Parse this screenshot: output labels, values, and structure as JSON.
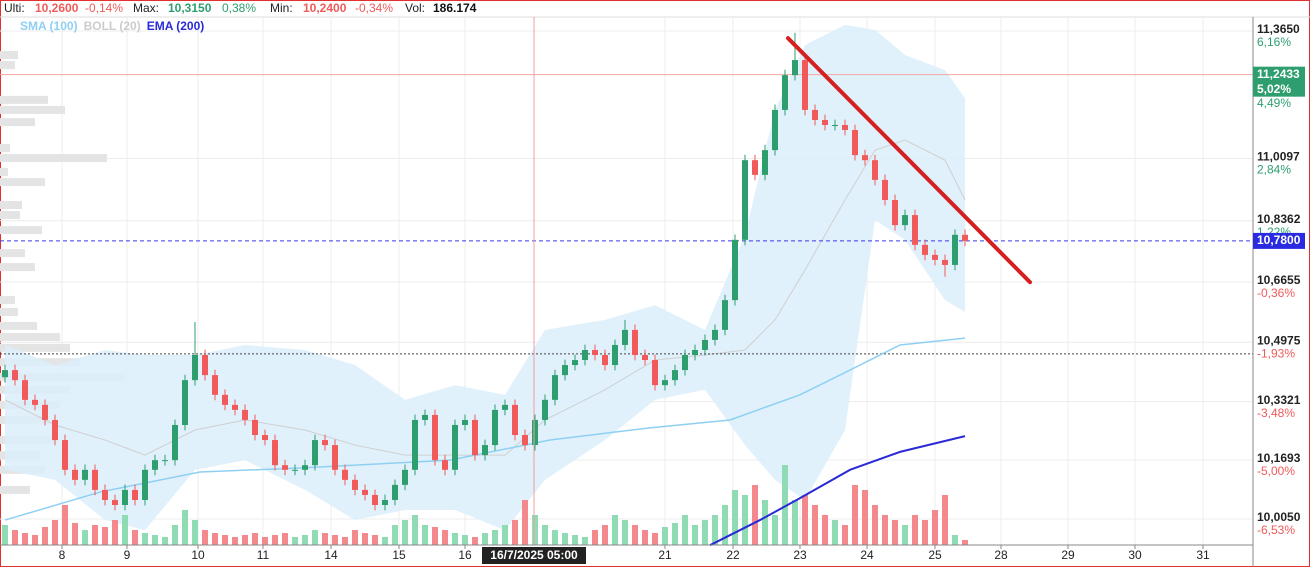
{
  "chart_data": {
    "type": "candlestick",
    "header": [
      {
        "label": "Ulti:",
        "value": "10,2600",
        "change": "-0,14%"
      },
      {
        "label": "Max:",
        "value": "10,3150",
        "change": "0,38%"
      },
      {
        "label": "Min:",
        "value": "10,2400",
        "change": "-0,34%"
      },
      {
        "label": "Vol:",
        "value": "186.174"
      }
    ],
    "up_color": "#2e9e6e",
    "down_color": "#f05a5a",
    "volume_up_color": "#8fdcb4",
    "volume_down_color": "#f3898c",
    "xlim": [
      -0.5,
      124.8
    ],
    "ylim": [
      9.9325,
      11.404
    ],
    "vlim": [
      0,
      100
    ],
    "grid": true,
    "xticks": [
      {
        "value": 5.7,
        "label": "8"
      },
      {
        "value": 12.2,
        "label": "9"
      },
      {
        "value": 19.3,
        "label": "10"
      },
      {
        "value": 25.8,
        "label": "11"
      },
      {
        "value": 32.6,
        "label": "14"
      },
      {
        "value": 39.4,
        "label": "15"
      },
      {
        "value": 46,
        "label": "16"
      },
      {
        "value": 66,
        "label": "21"
      },
      {
        "value": 72.8,
        "label": "22"
      },
      {
        "value": 79.5,
        "label": "23"
      },
      {
        "value": 86.2,
        "label": "24"
      },
      {
        "value": 93,
        "label": "25"
      },
      {
        "value": 99.6,
        "label": "28"
      },
      {
        "value": 106.3,
        "label": "29"
      },
      {
        "value": 113,
        "label": "30"
      },
      {
        "value": 119.8,
        "label": "31"
      }
    ],
    "crosshair": {
      "value": 52.9,
      "label": "16/7/2025 05:00"
    },
    "yticks": [
      {
        "value": 11.365,
        "label": "11,3650",
        "change": "6,16%"
      },
      {
        "value": 11.0097,
        "label": "11,0097",
        "change": "2,84%"
      },
      {
        "value": 10.8362,
        "label": "10,8362",
        "change": "1,22%"
      },
      {
        "value": 10.6655,
        "label": "10,6655",
        "change": "-0,36%"
      },
      {
        "value": 10.4975,
        "label": "10,4975",
        "change": "-1,93%"
      },
      {
        "value": 10.3321,
        "label": "10,3321",
        "change": "-3,48%"
      },
      {
        "value": 10.1693,
        "label": "10,1693",
        "change": "-5,00%"
      },
      {
        "value": 10.005,
        "label": "10,0050",
        "change": "-6,53%"
      }
    ],
    "extra_change": {
      "value": 11.162,
      "label": "4,49%"
    },
    "price_markers": [
      {
        "value": 11.2433,
        "label": "11,2433",
        "change": "5,02%",
        "color": "#2e9e6e",
        "line_color": "#f4a6a0",
        "dash": false
      },
      {
        "value": 10.78,
        "label": "10,7800",
        "color": "#2a2ae0",
        "line_color": "#3a3ae6",
        "dash": true
      }
    ],
    "reference_line": {
      "value": 10.465,
      "color": "#444"
    },
    "open": [
      10.4,
      10.42,
      10.392,
      10.337,
      10.323,
      10.281,
      10.225,
      10.142,
      10.114,
      10.142,
      10.086,
      10.058,
      10.044,
      10.086,
      10.058,
      10.142,
      10.169,
      10.169,
      10.267,
      10.392,
      10.462,
      10.406,
      10.351,
      10.323,
      10.309,
      10.281,
      10.239,
      10.225,
      10.155,
      10.142,
      10.142,
      10.155,
      10.225,
      10.211,
      10.142,
      10.114,
      10.086,
      10.072,
      10.044,
      10.058,
      10.1,
      10.142,
      10.281,
      10.295,
      10.169,
      10.142,
      10.267,
      10.281,
      10.183,
      10.211,
      10.309,
      10.323,
      10.239,
      10.211,
      10.281,
      10.337,
      10.406,
      10.434,
      10.448,
      10.476,
      10.462,
      10.434,
      10.49,
      10.532,
      10.462,
      10.448,
      10.378,
      10.392,
      10.42,
      10.462,
      10.476,
      10.504,
      10.532,
      10.615,
      10.783,
      11.005,
      10.964,
      11.033,
      11.145,
      11.242,
      11.284,
      11.145,
      11.117,
      11.103,
      11.103,
      11.089,
      11.019,
      11.005,
      10.95,
      10.894,
      10.824,
      10.852,
      10.769,
      10.741,
      10.727,
      10.713,
      10.797
    ],
    "high": [
      10.435,
      10.435,
      10.407,
      10.352,
      10.338,
      10.296,
      10.24,
      10.157,
      10.157,
      10.157,
      10.101,
      10.073,
      10.101,
      10.101,
      10.157,
      10.184,
      10.184,
      10.282,
      10.407,
      10.554,
      10.477,
      10.421,
      10.366,
      10.338,
      10.324,
      10.296,
      10.254,
      10.24,
      10.17,
      10.157,
      10.17,
      10.24,
      10.24,
      10.226,
      10.157,
      10.129,
      10.101,
      10.087,
      10.073,
      10.115,
      10.157,
      10.296,
      10.31,
      10.31,
      10.184,
      10.282,
      10.296,
      10.296,
      10.226,
      10.324,
      10.338,
      10.338,
      10.254,
      10.296,
      10.352,
      10.421,
      10.449,
      10.463,
      10.491,
      10.491,
      10.477,
      10.505,
      10.56,
      10.547,
      10.477,
      10.463,
      10.407,
      10.435,
      10.477,
      10.491,
      10.519,
      10.547,
      10.63,
      10.798,
      11.02,
      11.02,
      11.048,
      11.16,
      11.257,
      11.36,
      11.299,
      11.16,
      11.132,
      11.118,
      11.118,
      11.104,
      11.034,
      11.02,
      10.965,
      10.909,
      10.867,
      10.867,
      10.784,
      10.756,
      10.742,
      10.812,
      10.812
    ],
    "low": [
      10.385,
      10.377,
      10.322,
      10.308,
      10.266,
      10.21,
      10.127,
      10.099,
      10.099,
      10.071,
      10.043,
      10.029,
      10.029,
      10.043,
      10.043,
      10.127,
      10.154,
      10.154,
      10.252,
      10.377,
      10.391,
      10.336,
      10.308,
      10.294,
      10.266,
      10.224,
      10.21,
      10.14,
      10.127,
      10.127,
      10.127,
      10.14,
      10.196,
      10.127,
      10.099,
      10.071,
      10.057,
      10.029,
      10.029,
      10.043,
      10.085,
      10.127,
      10.266,
      10.154,
      10.127,
      10.127,
      10.252,
      10.168,
      10.168,
      10.196,
      10.294,
      10.224,
      10.196,
      10.196,
      10.266,
      10.322,
      10.391,
      10.419,
      10.433,
      10.447,
      10.419,
      10.419,
      10.475,
      10.447,
      10.433,
      10.363,
      10.363,
      10.377,
      10.405,
      10.447,
      10.461,
      10.489,
      10.517,
      10.6,
      10.768,
      10.949,
      10.949,
      11.018,
      11.13,
      11.227,
      11.13,
      11.102,
      11.088,
      11.088,
      11.074,
      11.004,
      10.99,
      10.935,
      10.879,
      10.809,
      10.809,
      10.754,
      10.726,
      10.712,
      10.68,
      10.698,
      10.765
    ],
    "close": [
      10.42,
      10.392,
      10.337,
      10.323,
      10.281,
      10.225,
      10.142,
      10.114,
      10.142,
      10.086,
      10.058,
      10.044,
      10.086,
      10.058,
      10.142,
      10.169,
      10.169,
      10.267,
      10.392,
      10.462,
      10.406,
      10.351,
      10.323,
      10.309,
      10.281,
      10.239,
      10.225,
      10.155,
      10.142,
      10.142,
      10.155,
      10.225,
      10.211,
      10.142,
      10.114,
      10.086,
      10.072,
      10.044,
      10.058,
      10.1,
      10.142,
      10.281,
      10.295,
      10.169,
      10.142,
      10.267,
      10.281,
      10.183,
      10.211,
      10.309,
      10.323,
      10.239,
      10.211,
      10.281,
      10.337,
      10.406,
      10.434,
      10.448,
      10.476,
      10.462,
      10.434,
      10.49,
      10.532,
      10.462,
      10.448,
      10.378,
      10.392,
      10.42,
      10.462,
      10.476,
      10.504,
      10.532,
      10.615,
      10.783,
      11.005,
      10.964,
      11.033,
      11.145,
      11.242,
      11.284,
      11.145,
      11.117,
      11.103,
      11.103,
      11.089,
      11.019,
      11.005,
      10.95,
      10.894,
      10.824,
      10.852,
      10.769,
      10.741,
      10.727,
      10.713,
      10.797,
      10.78
    ],
    "volume": [
      20,
      15,
      12,
      10,
      18,
      25,
      40,
      22,
      15,
      20,
      18,
      25,
      30,
      15,
      12,
      10,
      8,
      20,
      35,
      25,
      15,
      12,
      10,
      8,
      10,
      12,
      8,
      10,
      12,
      8,
      10,
      15,
      12,
      10,
      8,
      15,
      12,
      10,
      8,
      20,
      25,
      30,
      20,
      18,
      15,
      12,
      10,
      8,
      12,
      15,
      20,
      25,
      45,
      30,
      20,
      15,
      12,
      10,
      8,
      15,
      20,
      30,
      25,
      20,
      15,
      12,
      18,
      22,
      30,
      20,
      25,
      30,
      40,
      55,
      50,
      60,
      45,
      30,
      80,
      45,
      50,
      40,
      30,
      25,
      20,
      60,
      55,
      40,
      30,
      25,
      20,
      30,
      25,
      35,
      50,
      10,
      5
    ],
    "bollinger": {
      "name": "BOLL (20)",
      "fill": "#dbeefb",
      "color": "#cfcfcf",
      "x": [
        0,
        5,
        10,
        14,
        19,
        24,
        30,
        35,
        40,
        45,
        50,
        54,
        60,
        65,
        70,
        74,
        77,
        80,
        84,
        87,
        90,
        94,
        96
      ],
      "upper": [
        10.49,
        10.434,
        10.476,
        10.462,
        10.462,
        10.49,
        10.476,
        10.434,
        10.337,
        10.378,
        10.351,
        10.532,
        10.56,
        10.601,
        10.532,
        10.797,
        11.145,
        11.326,
        11.382,
        11.368,
        11.298,
        11.256,
        11.178
      ],
      "middle": [
        10.337,
        10.267,
        10.225,
        10.183,
        10.253,
        10.281,
        10.253,
        10.211,
        10.183,
        10.183,
        10.183,
        10.281,
        10.365,
        10.448,
        10.462,
        10.476,
        10.56,
        10.699,
        10.894,
        11.033,
        11.061,
        11.005,
        10.894
      ],
      "lower": [
        10.142,
        10.114,
        10.002,
        9.974,
        10.142,
        10.169,
        10.086,
        10.002,
        10.03,
        10.03,
        9.974,
        10.114,
        10.225,
        10.337,
        10.365,
        10.211,
        10.114,
        10.058,
        10.253,
        10.838,
        10.783,
        10.615,
        10.582
      ]
    },
    "lines": [
      {
        "name": "SMA (100)",
        "color": "#8fd0f2",
        "x": [
          0,
          9.5,
          19.5,
          29.5,
          44.5,
          54.5,
          64.5,
          72.5,
          79.5,
          84.5,
          89.5,
          96
        ],
        "values": [
          10.002,
          10.08,
          10.136,
          10.147,
          10.169,
          10.225,
          10.259,
          10.281,
          10.351,
          10.42,
          10.49,
          10.509
        ]
      },
      {
        "name": "EMA (200)",
        "color": "#2a2ad6",
        "x": [
          70.5,
          75.5,
          79.5,
          84.5,
          89.5,
          96
        ],
        "values": [
          9.932,
          10.002,
          10.063,
          10.142,
          10.192,
          10.236
        ]
      }
    ],
    "trendline": {
      "color": "#d42020",
      "x": [
        78.3,
        102.5
      ],
      "values": [
        11.345,
        10.665
      ]
    },
    "volume_profile": {
      "color": "#e4e4e4",
      "vlim": [
        0,
        200
      ],
      "prices": [
        11.298,
        11.27,
        11.173,
        11.145,
        11.111,
        11.039,
        11.011,
        10.972,
        10.944,
        10.88,
        10.852,
        10.81,
        10.746,
        10.707,
        10.615,
        10.582,
        10.543,
        10.512,
        10.482,
        10.442,
        10.401,
        10.365,
        10.323,
        10.281,
        10.225,
        10.183,
        10.142,
        10.086
      ],
      "values": [
        18,
        15,
        48,
        65,
        35,
        10,
        107,
        8,
        45,
        22,
        20,
        42,
        25,
        35,
        15,
        18,
        37,
        60,
        70,
        80,
        125,
        70,
        60,
        50,
        55,
        40,
        45,
        30
      ]
    }
  }
}
